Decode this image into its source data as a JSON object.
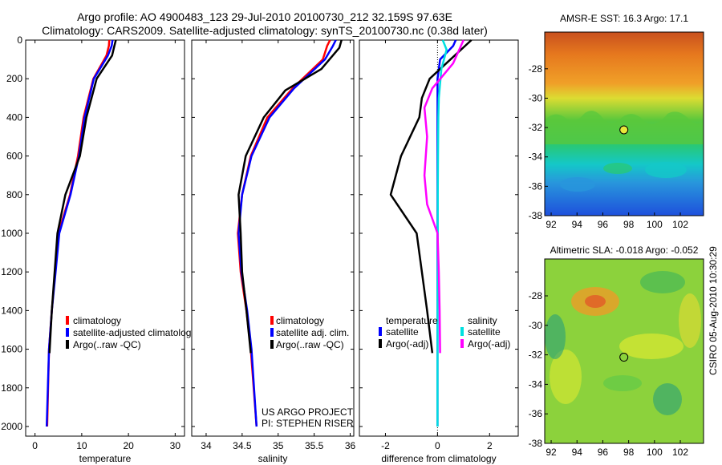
{
  "header": {
    "line1": "Argo profile: AO 4900483_123 29-Jul-2010 20100730_212 32.159S 97.63E",
    "line2": "Climatology: CARS2009. Satellite-adjusted climatology: synTS_20100730.nc (0.38d later)"
  },
  "credit": "CSIRO 05-Aug-2010 10:30:29",
  "project": {
    "line1": "US ARGO PROJECT",
    "line2": "PI: STEPHEN RISER"
  },
  "colors": {
    "climatology": "#ff0000",
    "satellite": "#0000ff",
    "argo": "#000000",
    "sal_satellite": "#00e0e0",
    "sal_argo": "#ff00ff"
  },
  "chart_data": [
    {
      "type": "line",
      "id": "temperature",
      "xlabel": "temperature",
      "xlim": [
        -2,
        32
      ],
      "xticks": [
        0,
        10,
        20,
        30
      ],
      "ylim": [
        0,
        2050
      ],
      "yticks": [
        0,
        200,
        400,
        600,
        800,
        1000,
        1200,
        1400,
        1600,
        1800,
        2000
      ],
      "yreversed": true,
      "legend": [
        "climatology",
        "satellite-adjusted climatology",
        "Argo(..raw -QC)"
      ],
      "series": [
        {
          "name": "climatology",
          "color": "#ff0000",
          "x": [
            15.9,
            15.8,
            15.3,
            12.5,
            10.4,
            9.2,
            7.5,
            5.0,
            4.3,
            3.6,
            3.0,
            2.6
          ],
          "y": [
            0,
            30,
            80,
            200,
            400,
            600,
            800,
            1000,
            1200,
            1400,
            1600,
            2000
          ]
        },
        {
          "name": "satellite-adjusted climatology",
          "color": "#0000ff",
          "x": [
            16.6,
            16.4,
            15.6,
            12.6,
            10.6,
            9.4,
            7.6,
            5.2,
            4.4,
            3.6,
            3.0,
            2.5
          ],
          "y": [
            0,
            30,
            80,
            200,
            400,
            600,
            800,
            1000,
            1200,
            1400,
            1600,
            2000
          ]
        },
        {
          "name": "Argo(..raw -QC)",
          "color": "#000000",
          "x": [
            17.3,
            17.0,
            16.5,
            13.2,
            11.0,
            9.6,
            6.5,
            4.8,
            4.2,
            3.6,
            3.1
          ],
          "y": [
            0,
            30,
            80,
            200,
            400,
            600,
            800,
            1000,
            1200,
            1400,
            1620
          ]
        }
      ]
    },
    {
      "type": "line",
      "id": "salinity",
      "xlabel": "salinity",
      "xlim": [
        33.8,
        36.05
      ],
      "xticks": [
        34,
        34.5,
        35,
        35.5,
        36
      ],
      "ylim": [
        0,
        2050
      ],
      "yreversed": true,
      "legend": [
        "climatology",
        "satellite adj. clim.",
        "Argo(..raw -QC)"
      ],
      "series": [
        {
          "name": "climatology",
          "color": "#ff0000",
          "x": [
            35.72,
            35.68,
            35.62,
            35.2,
            34.85,
            34.62,
            34.5,
            34.44,
            34.48,
            34.56,
            34.62,
            34.7
          ],
          "y": [
            0,
            30,
            100,
            250,
            400,
            600,
            800,
            1000,
            1200,
            1400,
            1600,
            2000
          ]
        },
        {
          "name": "satellite adj. clim.",
          "color": "#0000ff",
          "x": [
            35.8,
            35.76,
            35.65,
            35.22,
            34.88,
            34.63,
            34.5,
            34.45,
            34.49,
            34.57,
            34.63,
            34.7
          ],
          "y": [
            0,
            30,
            100,
            250,
            400,
            600,
            800,
            1000,
            1200,
            1400,
            1600,
            2000
          ]
        },
        {
          "name": "Argo(..raw -QC)",
          "color": "#000000",
          "x": [
            35.88,
            35.85,
            35.6,
            35.1,
            34.8,
            34.55,
            34.45,
            34.48,
            34.5,
            34.56,
            34.62
          ],
          "y": [
            0,
            40,
            150,
            260,
            400,
            600,
            800,
            1000,
            1200,
            1400,
            1620
          ]
        }
      ]
    },
    {
      "type": "line",
      "id": "difference",
      "xlabel": "difference from climatology",
      "xlim": [
        -3,
        3.1
      ],
      "xticks": [
        -2,
        0,
        2
      ],
      "ylim": [
        0,
        2050
      ],
      "yreversed": true,
      "legend_temperature": {
        "title": "temperature",
        "items": [
          "satellite",
          "Argo(-adj)"
        ]
      },
      "legend_salinity": {
        "title": "salinity",
        "items": [
          "satellite",
          "Argo(-adj)"
        ]
      },
      "series": [
        {
          "name": "temperature satellite",
          "color": "#0000ff",
          "x": [
            0.7,
            0.6,
            0.1,
            0.0,
            0.0,
            0.0,
            0.0,
            0.0,
            0.0,
            0.0,
            0.0,
            0.0
          ],
          "y": [
            0,
            30,
            100,
            200,
            400,
            600,
            800,
            1000,
            1200,
            1400,
            1600,
            2000
          ]
        },
        {
          "name": "temperature Argo(-adj)",
          "color": "#000000",
          "x": [
            1.3,
            0.5,
            -0.3,
            -0.6,
            -0.7,
            -1.4,
            -1.8,
            -0.8,
            -0.6,
            -0.4,
            -0.2
          ],
          "y": [
            0,
            100,
            200,
            300,
            400,
            600,
            800,
            1000,
            1200,
            1400,
            1620
          ]
        },
        {
          "name": "salinity satellite",
          "color": "#00e0e0",
          "x": [
            0.2,
            0.35,
            0.15,
            0.05,
            0.03,
            0.02,
            0.01,
            0.01,
            0.01,
            0.0,
            0.0,
            0.0
          ],
          "y": [
            0,
            50,
            150,
            300,
            400,
            600,
            800,
            1000,
            1200,
            1400,
            1600,
            2000
          ]
        },
        {
          "name": "salinity Argo(-adj)",
          "color": "#ff00ff",
          "x": [
            1.0,
            0.6,
            -0.2,
            -0.5,
            -0.4,
            -0.5,
            -0.4,
            0.0,
            0.05,
            0.08,
            0.1
          ],
          "y": [
            0,
            120,
            250,
            350,
            500,
            700,
            850,
            1000,
            1200,
            1400,
            1620
          ]
        }
      ]
    },
    {
      "type": "heatmap",
      "id": "sst_map",
      "title": "AMSR-E SST: 16.3 Argo: 17.1",
      "xlim": [
        91.5,
        103.8
      ],
      "ylim": [
        -38,
        -25.5
      ],
      "xticks": [
        92,
        94,
        96,
        98,
        100,
        102
      ],
      "yticks": [
        -38,
        -36,
        -34,
        -32,
        -30,
        -28
      ],
      "marker": {
        "lon": 97.63,
        "lat": -32.159
      }
    },
    {
      "type": "heatmap",
      "id": "sla_map",
      "title": "Altimetric SLA: -0.018 Argo: -0.052",
      "xlim": [
        91.5,
        103.8
      ],
      "ylim": [
        -38,
        -25.5
      ],
      "xticks": [
        92,
        94,
        96,
        98,
        100,
        102
      ],
      "yticks": [
        -38,
        -36,
        -34,
        -32,
        -30,
        -28
      ],
      "marker": {
        "lon": 97.63,
        "lat": -32.159
      }
    }
  ]
}
